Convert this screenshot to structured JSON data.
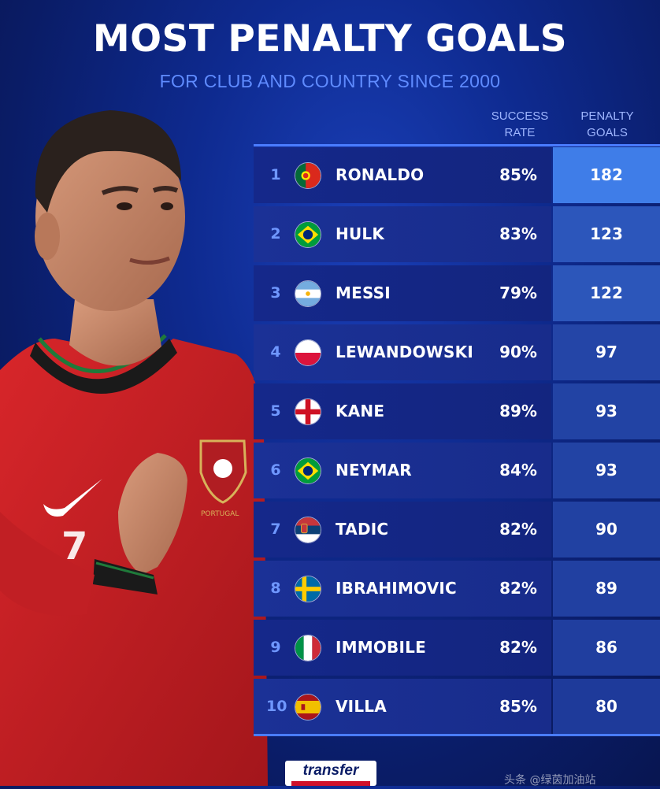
{
  "header": {
    "title": "MOST PENALTY GOALS",
    "subtitle": "FOR CLUB AND COUNTRY SINCE 2000"
  },
  "columns": {
    "rate_line1": "SUCCESS",
    "rate_line2": "RATE",
    "goals_line1": "PENALTY",
    "goals_line2": "GOALS"
  },
  "rows": [
    {
      "rank": "1",
      "name": "RONALDO",
      "flag": "portugal-flag-icon",
      "rate": "85%",
      "goals": "182",
      "goals_value": 182
    },
    {
      "rank": "2",
      "name": "HULK",
      "flag": "brazil-flag-icon",
      "rate": "83%",
      "goals": "123",
      "goals_value": 123
    },
    {
      "rank": "3",
      "name": "MESSI",
      "flag": "argentina-flag-icon",
      "rate": "79%",
      "goals": "122",
      "goals_value": 122
    },
    {
      "rank": "4",
      "name": "LEWANDOWSKI",
      "flag": "poland-flag-icon",
      "rate": "90%",
      "goals": "97",
      "goals_value": 97
    },
    {
      "rank": "5",
      "name": "KANE",
      "flag": "england-flag-icon",
      "rate": "89%",
      "goals": "93",
      "goals_value": 93
    },
    {
      "rank": "6",
      "name": "NEYMAR",
      "flag": "brazil-flag-icon",
      "rate": "84%",
      "goals": "93",
      "goals_value": 93
    },
    {
      "rank": "7",
      "name": "TADIC",
      "flag": "serbia-flag-icon",
      "rate": "82%",
      "goals": "90",
      "goals_value": 90
    },
    {
      "rank": "8",
      "name": "IBRAHIMOVIC",
      "flag": "sweden-flag-icon",
      "rate": "82%",
      "goals": "89",
      "goals_value": 89
    },
    {
      "rank": "9",
      "name": "IMMOBILE",
      "flag": "italy-flag-icon",
      "rate": "82%",
      "goals": "86",
      "goals_value": 86
    },
    {
      "rank": "10",
      "name": "VILLA",
      "flag": "spain-flag-icon",
      "rate": "85%",
      "goals": "80",
      "goals_value": 80
    }
  ],
  "colors": {
    "background": "#0e2a8f",
    "subtitle": "#5f8bff",
    "accent_line": "#4a7cff",
    "goals_high": "#3f7de8",
    "goals_low": "#1e3a9a"
  },
  "branding": {
    "logo_text": "transfer",
    "watermark": "头条 @绿茵加油站"
  }
}
